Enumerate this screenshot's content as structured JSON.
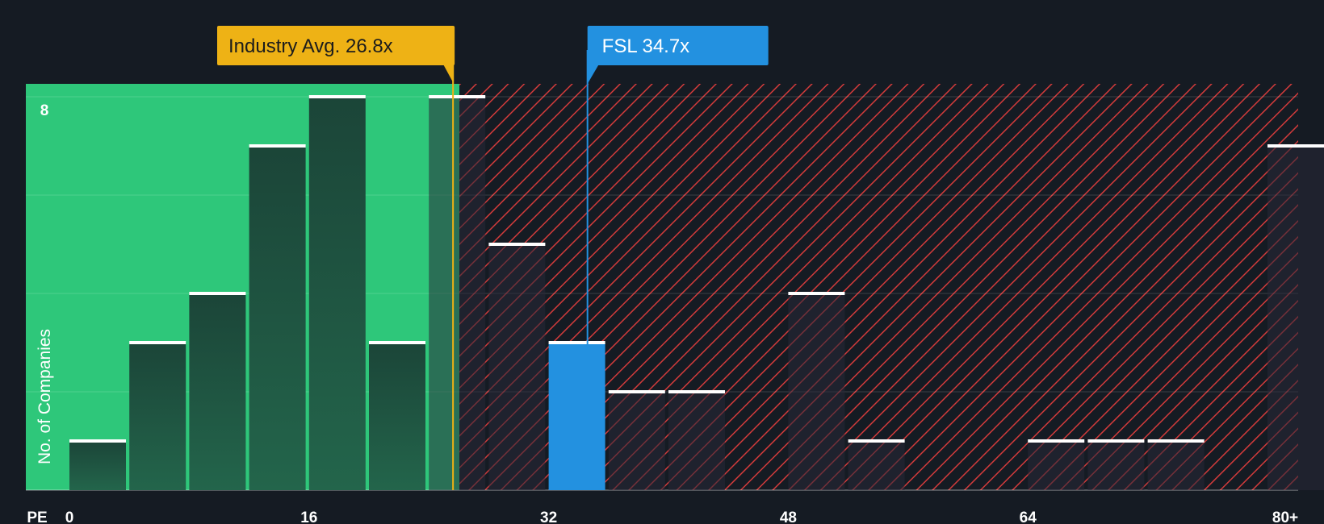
{
  "chart_data": {
    "type": "bar",
    "title": "",
    "xlabel": "PE",
    "ylabel": "No. of Companies",
    "xlim": [
      0,
      80
    ],
    "ylim": [
      0,
      8
    ],
    "x_ticks": [
      "0",
      "16",
      "32",
      "48",
      "64",
      "80+"
    ],
    "x_tick_values": [
      0,
      16,
      32,
      48,
      64,
      80
    ],
    "y_tick_label": "8",
    "bin_width": 4,
    "bins": [
      {
        "start": 0,
        "count": 1
      },
      {
        "start": 4,
        "count": 3
      },
      {
        "start": 8,
        "count": 4
      },
      {
        "start": 12,
        "count": 7
      },
      {
        "start": 16,
        "count": 8
      },
      {
        "start": 20,
        "count": 3
      },
      {
        "start": 24,
        "count": 8
      },
      {
        "start": 28,
        "count": 5
      },
      {
        "start": 32,
        "count": 3,
        "highlight": true
      },
      {
        "start": 36,
        "count": 2
      },
      {
        "start": 40,
        "count": 2
      },
      {
        "start": 44,
        "count": 0
      },
      {
        "start": 48,
        "count": 4
      },
      {
        "start": 52,
        "count": 1
      },
      {
        "start": 56,
        "count": 0
      },
      {
        "start": 60,
        "count": 0
      },
      {
        "start": 64,
        "count": 1
      },
      {
        "start": 68,
        "count": 1
      },
      {
        "start": 72,
        "count": 1
      },
      {
        "start": 76,
        "count": 0
      },
      {
        "start": 80,
        "count": 7
      }
    ],
    "fair_zone_end": 25.5,
    "industry_avg": {
      "label": "Industry Avg. 26.8x",
      "value": 26.8
    },
    "company": {
      "label": "FSL 34.7x",
      "value": 34.7
    },
    "colors": {
      "background": "#151b23",
      "fair_zone": "#2ec77a",
      "bar_dark": "#1e4a3e",
      "overvalued_stripe": "#d23b3b",
      "industry_avg": "#eeb215",
      "company": "#2391e0",
      "bar_cap": "#ffffff"
    }
  }
}
